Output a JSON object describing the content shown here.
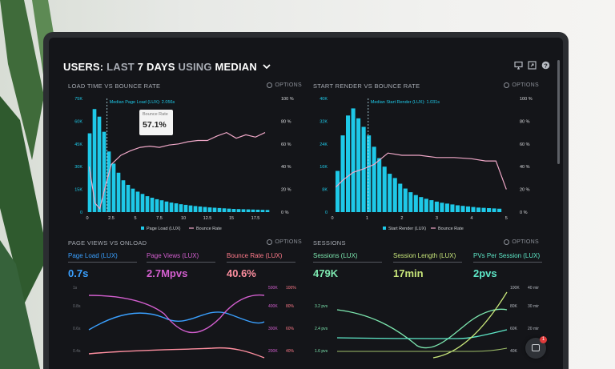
{
  "header": {
    "prefix": "USERS:",
    "last": "LAST",
    "days": "7 DAYS",
    "using": "USING",
    "metric": "MEDIAN"
  },
  "colors": {
    "cyan": "#1ec9e8",
    "pink": "#f0a8c8",
    "green": "#7de8b0",
    "purple": "#d45fd0",
    "coral": "#ff7a8a"
  },
  "icons": [
    "monitor-icon",
    "expand-icon",
    "help-icon",
    "gear-icon",
    "chevron-down-icon",
    "chat-icon"
  ],
  "panels": {
    "load_time": {
      "title": "LOAD TIME VS BOUNCE RATE",
      "options": "OPTIONS",
      "median_label": "Median Page Load (LUX): 2.056s",
      "tooltip_label": "Bounce Rate",
      "tooltip_value": "57.1%",
      "legend_bars": "Page Load (LUX)",
      "legend_line": "Bounce Rate"
    },
    "start_render": {
      "title": "START RENDER VS BOUNCE RATE",
      "options": "OPTIONS",
      "median_label": "Median Start Render (LUX): 1.031s",
      "legend_bars": "Start Render (LUX)",
      "legend_line": "Bounce Rate"
    },
    "page_views": {
      "title": "PAGE VIEWS VS ONLOAD",
      "options": "OPTIONS",
      "metrics": [
        {
          "label": "Page Load (LUX)",
          "value": "0.7s"
        },
        {
          "label": "Page Views (LUX)",
          "value": "2.7Mpvs"
        },
        {
          "label": "Bounce Rate (LUX)",
          "value": "40.6%"
        }
      ]
    },
    "sessions": {
      "title": "SESSIONS",
      "options": "OPTIONS",
      "metrics": [
        {
          "label": "Sessions (LUX)",
          "value": "479K"
        },
        {
          "label": "Session Length (LUX)",
          "value": "17min"
        },
        {
          "label": "PVs Per Session (LUX)",
          "value": "2pvs"
        }
      ]
    }
  },
  "chat": {
    "badge": "1"
  },
  "chart_data": [
    {
      "type": "bar",
      "title": "LOAD TIME VS BOUNCE RATE",
      "x_ticks": [
        "0",
        "2.5",
        "5",
        "7.5",
        "10",
        "12.5",
        "15",
        "17.5"
      ],
      "y_left_ticks": [
        "0",
        "15K",
        "30K",
        "45K",
        "60K",
        "75K"
      ],
      "y_right_ticks": [
        "0 %",
        "20 %",
        "40 %",
        "60 %",
        "80 %",
        "100 %"
      ],
      "xlim": [
        0,
        19.5
      ],
      "ylim_left": [
        0,
        75000
      ],
      "ylim_right": [
        0,
        100
      ],
      "median_x": 2.056,
      "bars_x": [
        0.25,
        0.75,
        1.25,
        1.75,
        2.25,
        2.75,
        3.25,
        3.75,
        4.25,
        4.75,
        5.25,
        5.75,
        6.25,
        6.75,
        7.25,
        7.75,
        8.25,
        8.75,
        9.25,
        9.75,
        10.25,
        10.75,
        11.25,
        11.75,
        12.25,
        12.75,
        13.25,
        13.75,
        14.25,
        14.75,
        15.25,
        15.75,
        16.25,
        16.75,
        17.25,
        17.75,
        18.25,
        18.75
      ],
      "bars_y": [
        52000,
        68000,
        63000,
        53000,
        40000,
        32000,
        26000,
        21000,
        18000,
        15500,
        13500,
        12000,
        10500,
        9500,
        8500,
        7800,
        7000,
        6300,
        5800,
        5200,
        4800,
        4400,
        4000,
        3700,
        3400,
        3100,
        2900,
        2700,
        2500,
        2300,
        2100,
        2000,
        1900,
        1800,
        1700,
        1600,
        1500,
        1400
      ],
      "series": [
        {
          "name": "Bounce Rate",
          "x": [
            0.2,
            0.8,
            1.3,
            1.8,
            2.5,
            3.5,
            4.5,
            5.5,
            6.5,
            7.5,
            8.5,
            9.5,
            10.5,
            11.5,
            12.5,
            13.5,
            14.5,
            15.5,
            16.5,
            17.5,
            18.5
          ],
          "y": [
            40,
            8,
            3,
            20,
            42,
            50,
            54,
            57,
            58,
            57,
            59,
            60,
            62,
            63,
            63,
            67,
            70,
            65,
            68,
            66,
            70
          ]
        }
      ]
    },
    {
      "type": "bar",
      "title": "START RENDER VS BOUNCE RATE",
      "x_ticks": [
        "0",
        "1",
        "2",
        "3",
        "4",
        "5"
      ],
      "y_left_ticks": [
        "0",
        "8K",
        "16K",
        "24K",
        "32K",
        "40K"
      ],
      "y_right_ticks": [
        "0 %",
        "20 %",
        "40 %",
        "60 %",
        "80 %",
        "100 %"
      ],
      "xlim": [
        0,
        5.2
      ],
      "ylim_left": [
        0,
        40000
      ],
      "ylim_right": [
        0,
        100
      ],
      "median_x": 1.031,
      "bars_x": [
        0.15,
        0.3,
        0.45,
        0.6,
        0.75,
        0.9,
        1.05,
        1.2,
        1.35,
        1.5,
        1.65,
        1.8,
        1.95,
        2.1,
        2.25,
        2.4,
        2.55,
        2.7,
        2.85,
        3.0,
        3.15,
        3.3,
        3.45,
        3.6,
        3.75,
        3.9,
        4.05,
        4.2,
        4.35,
        4.5,
        4.65,
        4.8
      ],
      "bars_y": [
        14500,
        27000,
        34000,
        36500,
        33000,
        30000,
        27000,
        23000,
        19000,
        16000,
        13500,
        12000,
        10000,
        8300,
        7000,
        6000,
        5300,
        4700,
        4200,
        3700,
        3300,
        3000,
        2700,
        2400,
        2200,
        2000,
        1800,
        1600,
        1500,
        1400,
        1300,
        1200
      ],
      "series": [
        {
          "name": "Bounce Rate",
          "x": [
            0.1,
            0.3,
            0.6,
            0.9,
            1.2,
            1.6,
            2.0,
            2.5,
            3.0,
            3.5,
            4.0,
            4.4,
            4.7,
            5.0
          ],
          "y": [
            22,
            28,
            35,
            38,
            42,
            52,
            50,
            50,
            48,
            48,
            47,
            45,
            45,
            20
          ]
        }
      ]
    }
  ]
}
